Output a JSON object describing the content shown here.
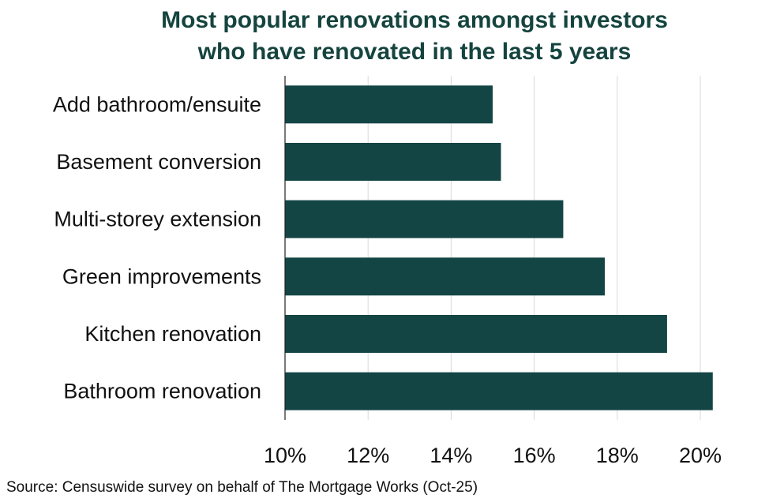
{
  "chart_data": {
    "type": "bar",
    "orientation": "horizontal",
    "title": "Most popular renovations amongst investors who have renovated in the last 5 years",
    "title_lines": [
      "Most popular renovations amongst investors",
      "who have renovated in the last 5 years"
    ],
    "categories": [
      "Add bathroom/ensuite",
      "Basement conversion",
      "Multi-storey extension",
      "Green improvements",
      "Kitchen renovation",
      "Bathroom renovation"
    ],
    "values": [
      15.0,
      15.2,
      16.7,
      17.7,
      19.2,
      20.3
    ],
    "unit": "%",
    "xlim": [
      10,
      20
    ],
    "xticks": [
      "10%",
      "12%",
      "14%",
      "16%",
      "18%",
      "20%"
    ],
    "xtick_values": [
      10,
      12,
      14,
      16,
      18,
      20
    ],
    "grid": "vertical",
    "legend": "none",
    "bar_color": "#144545",
    "title_color": "#15443f",
    "source": "Source: Censuswide survey on behalf of The Mortgage Works (Oct-25)"
  }
}
